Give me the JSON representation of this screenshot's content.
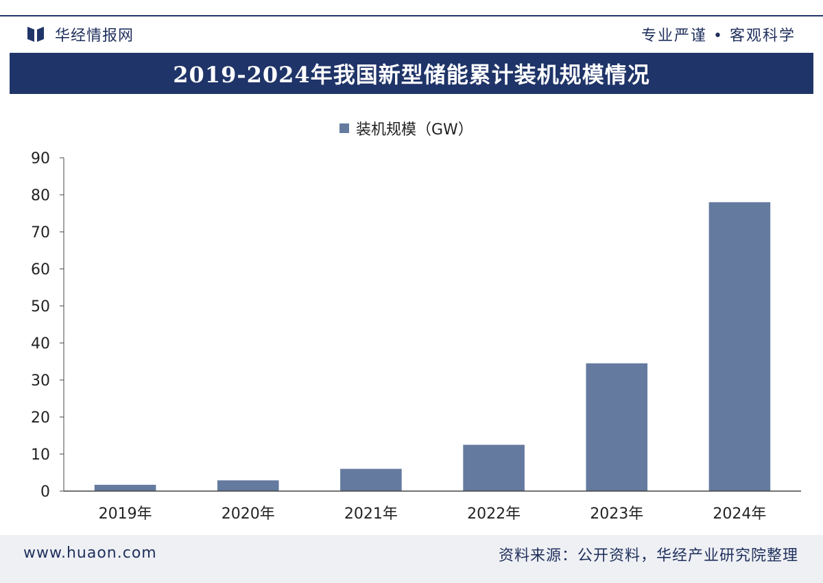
{
  "header": {
    "brand": "华经情报网",
    "slogan": "专业严谨 • 客观科学"
  },
  "title": "2019-2024年我国新型储能累计装机规模情况",
  "chart_data": {
    "type": "bar",
    "categories": [
      "2019年",
      "2020年",
      "2021年",
      "2022年",
      "2023年",
      "2024年"
    ],
    "series": [
      {
        "name": "装机规模（GW）",
        "values": [
          1.7,
          2.9,
          6,
          12.5,
          34.5,
          78
        ],
        "color": "#647a9f"
      }
    ],
    "ylim": [
      0,
      90
    ],
    "yticks": [
      0,
      10,
      20,
      30,
      40,
      50,
      60,
      70,
      80,
      90
    ],
    "grid": false,
    "legend_position": "top-center"
  },
  "footer": {
    "website": "www.huaon.com",
    "source": "资料来源：公开资料，华经产业研究院整理"
  }
}
